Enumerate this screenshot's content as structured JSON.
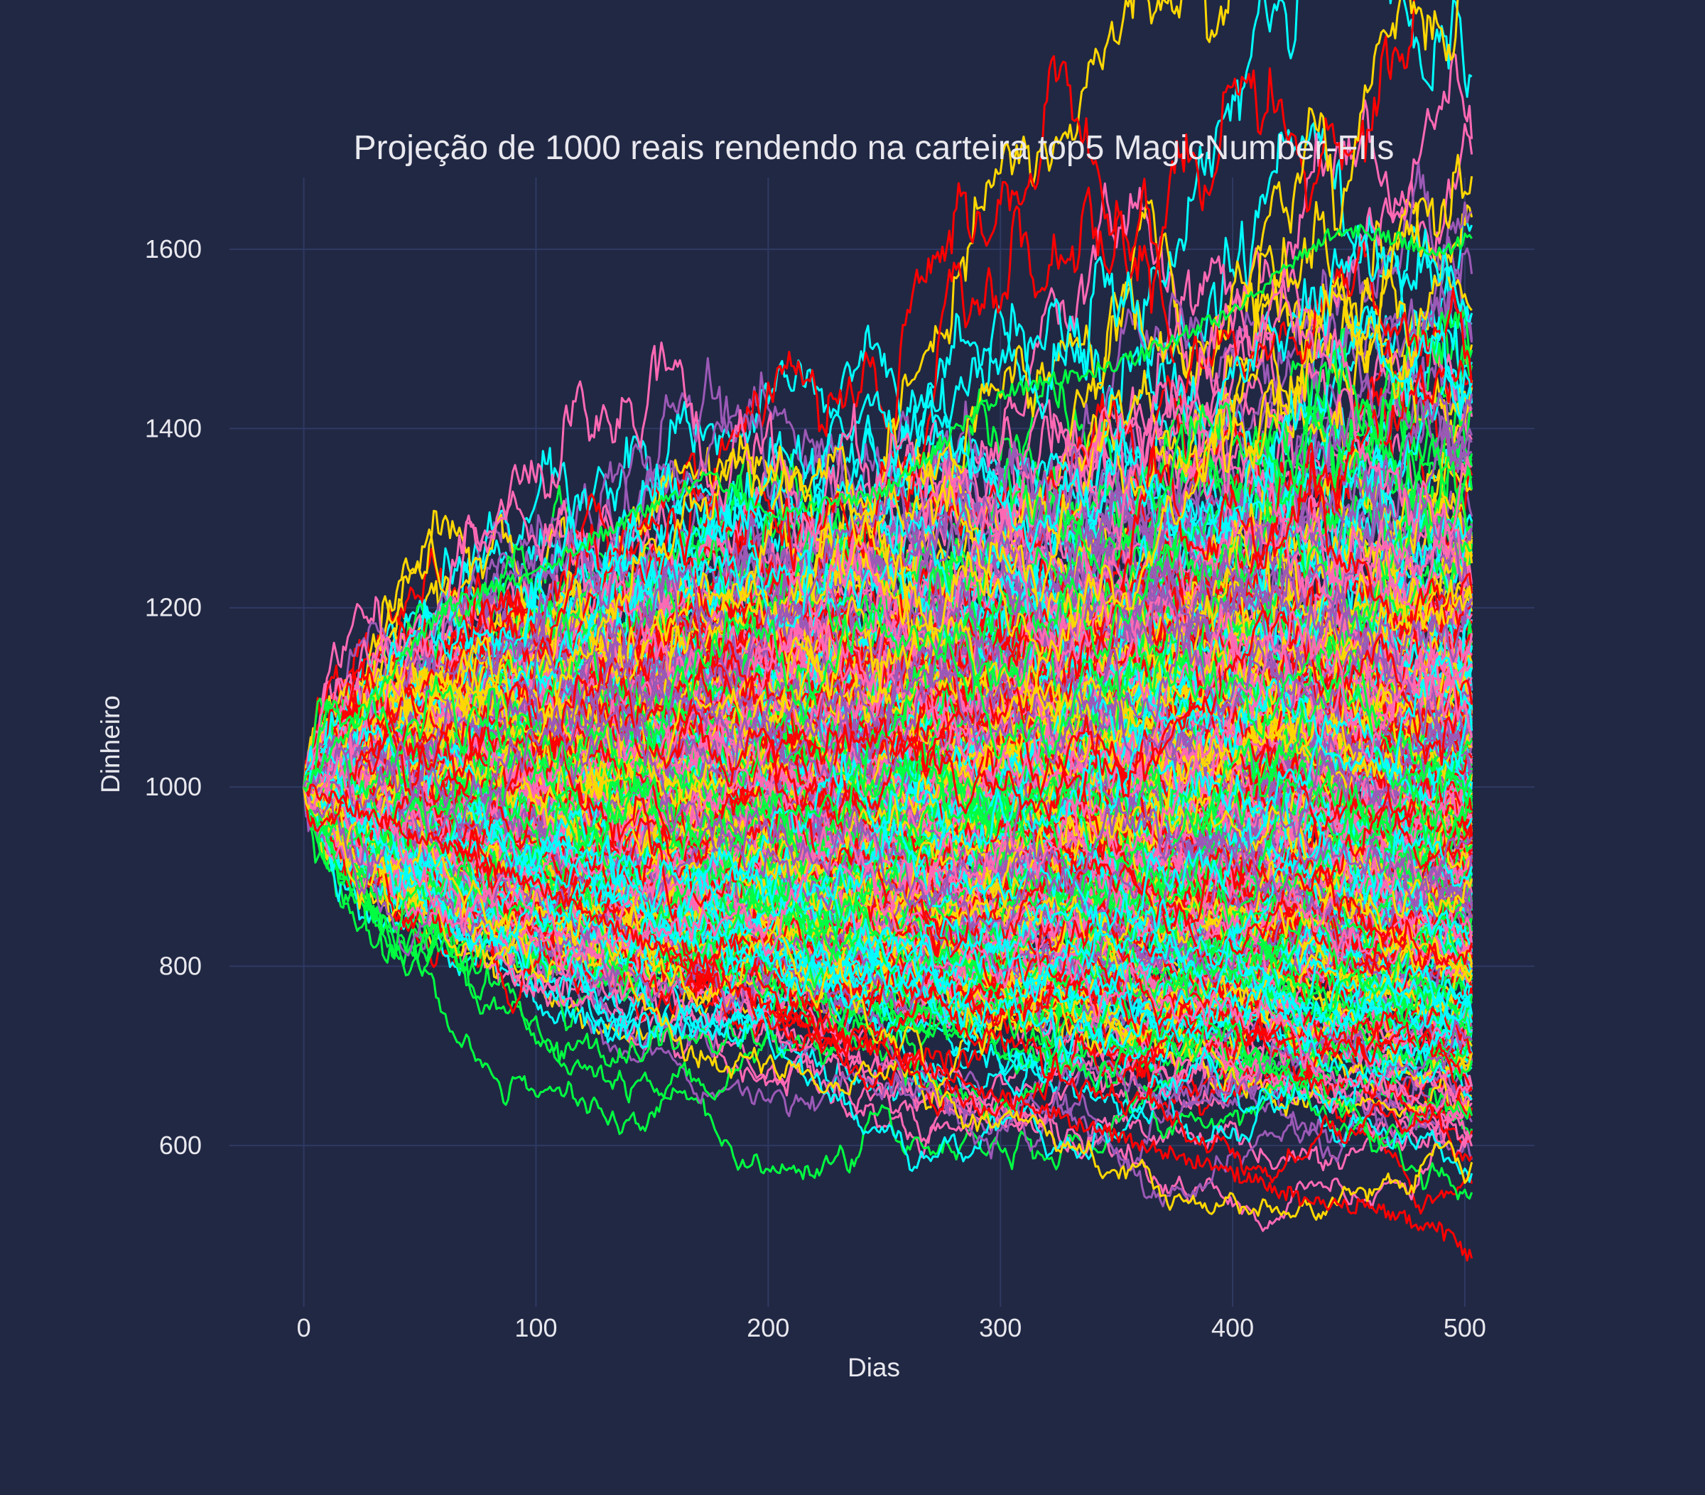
{
  "chart_data": {
    "type": "line",
    "title": "Projeção de 1000 reais rendendo na carteira top5 MagicNumber-FIIs",
    "xlabel": "Dias",
    "ylabel": "Dinheiro",
    "xlim": [
      -32,
      530
    ],
    "ylim": [
      420,
      1680
    ],
    "x_ticks": [
      0,
      100,
      200,
      300,
      400,
      500
    ],
    "y_ticks": [
      600,
      800,
      1000,
      1200,
      1400,
      1600
    ],
    "x_tick_labels": [
      "0",
      "100",
      "200",
      "300",
      "400",
      "500"
    ],
    "y_tick_labels": [
      "600",
      "800",
      "1000",
      "1200",
      "1400",
      "1600"
    ],
    "grid": true,
    "legend": "none",
    "series_note_count": 1000,
    "days": 504,
    "start_value": 1000,
    "end_value_range": [
      474,
      1612
    ],
    "min_path": {
      "x": [
        0,
        100,
        200,
        300,
        350,
        400,
        430,
        460,
        490,
        503
      ],
      "y": [
        1000,
        890,
        755,
        655,
        610,
        570,
        540,
        530,
        505,
        474
      ]
    },
    "max_path": {
      "x": [
        0,
        60,
        100,
        175,
        200,
        250,
        300,
        350,
        400,
        445,
        490,
        503
      ],
      "y": [
        1000,
        1200,
        1240,
        1350,
        1300,
        1330,
        1440,
        1470,
        1530,
        1625,
        1600,
        1612
      ]
    },
    "colors": [
      "#ff0000",
      "#ffd700",
      "#00ff40",
      "#00ffff",
      "#ff69b4",
      "#9b59b6"
    ],
    "background": "#212844",
    "grid_color": "#2f3a63"
  }
}
